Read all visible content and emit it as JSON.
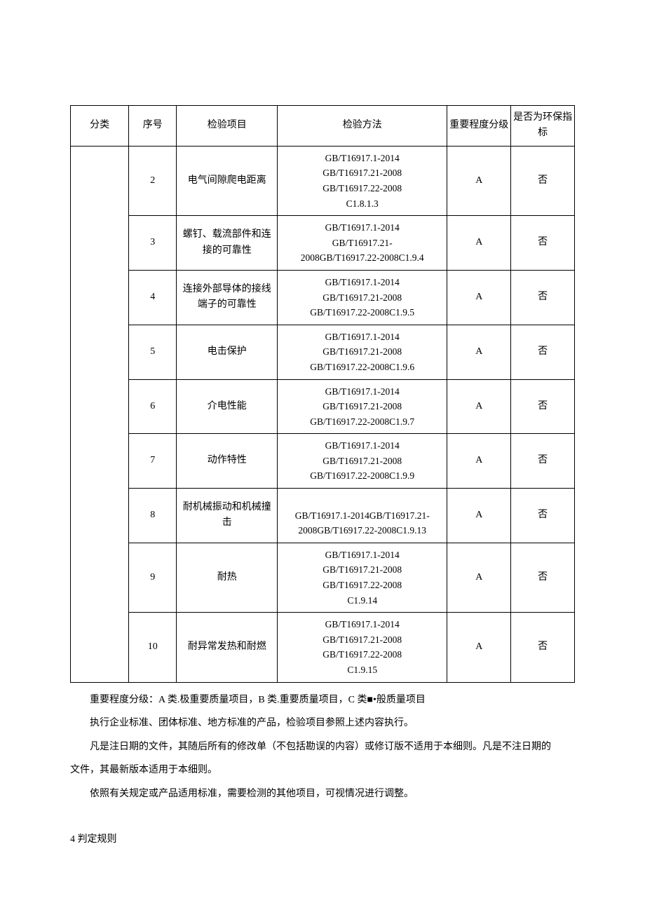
{
  "table": {
    "headers": {
      "category": "分类",
      "seq": "序号",
      "item": "检验项目",
      "method": "检验方法",
      "importance": "重要程度分级",
      "env": "是否为环保指标"
    },
    "rows": [
      {
        "seq": "2",
        "item": "电气间隙爬电距离",
        "method": "GB/T16917.1-2014\nGB/T16917.21-2008\nGB/T16917.22-2008\nC1.8.1.3",
        "importance": "A",
        "env": "否"
      },
      {
        "seq": "3",
        "item": "螺钉、载流部件和连接的可靠性",
        "method": "GB/T16917.1-2014\nGB/T16917.21-\n2008GB/T16917.22-2008C1.9.4",
        "importance": "A",
        "env": "否"
      },
      {
        "seq": "4",
        "item": "连接外部导体的接线端子的可靠性",
        "method": "GB/T16917.1-2014\nGB/T16917.21-2008\nGB/T16917.22-2008C1.9.5",
        "importance": "A",
        "env": "否"
      },
      {
        "seq": "5",
        "item": "电击保护",
        "method": "GB/T16917.1-2014\nGB/T16917.21-2008\nGB/T16917.22-2008C1.9.6",
        "importance": "A",
        "env": "否"
      },
      {
        "seq": "6",
        "item": "介电性能",
        "method": "GB/T16917.1-2014\nGB/T16917.21-2008\nGB/T16917.22-2008C1.9.7",
        "importance": "A",
        "env": "否"
      },
      {
        "seq": "7",
        "item": "动作特性",
        "method": "GB/T16917.1-2014\nGB/T16917.21-2008\nGB/T16917.22-2008C1.9.9",
        "importance": "A",
        "env": "否"
      },
      {
        "seq": "8",
        "item": "耐机械振动和机械撞击",
        "method": "\nGB/T16917.1-2014GB/T16917.21-\n2008GB/T16917.22-2008C1.9.13",
        "importance": "A",
        "env": "否"
      },
      {
        "seq": "9",
        "item": "耐热",
        "method": "GB/T16917.1-2014\nGB/T16917.21-2008\nGB/T16917.22-2008\nC1.9.14",
        "importance": "A",
        "env": "否"
      },
      {
        "seq": "10",
        "item": "耐异常发热和耐燃",
        "method": "GB/T16917.1-2014\nGB/T16917.21-2008\nGB/T16917.22-2008\nC1.9.15",
        "importance": "A",
        "env": "否"
      }
    ]
  },
  "notes": {
    "line1": "重要程度分级：A 类.极重要质量项目，B 类.重要质量项目，C 类■•般质量项目",
    "line2": "执行企业标准、团体标准、地方标准的产品，检验项目参照上述内容执行。",
    "line3": "凡是注日期的文件，其随后所有的修改单（不包括勘误的内容）或修订版不适用于本细则。凡是不注日期的",
    "line3b": "文件，其最新版本适用于本细则。",
    "line4": "依照有关规定或产品适用标准，需要检测的其他项目，可视情况进行调整。"
  },
  "section_heading": "4 判定规则"
}
